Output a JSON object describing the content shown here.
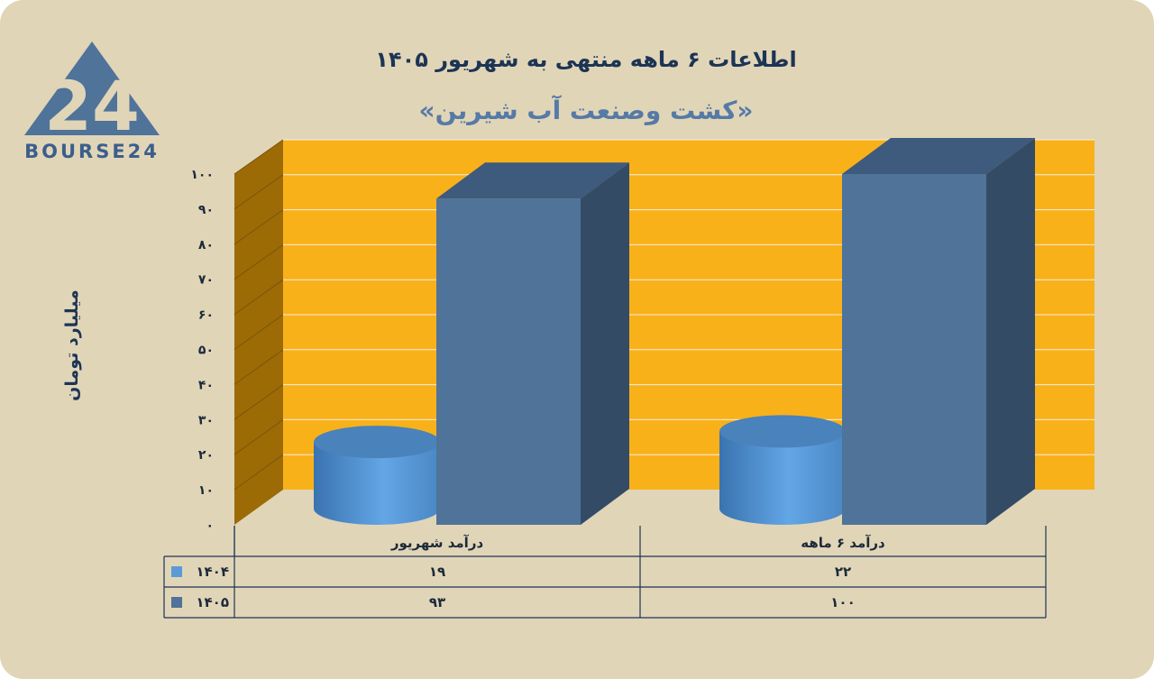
{
  "logo": {
    "text": "BOURSE24",
    "mark": "24"
  },
  "colors": {
    "background": "#e1d5b8",
    "plot_back": "#f9b11a",
    "plot_side": "#9c6b06",
    "series_1404": "#5b9bd5",
    "series_1405": "#4f7399",
    "text_dark": "#1c3554",
    "subtitle": "#567aa6"
  },
  "chart_data": {
    "type": "bar",
    "title": "اطلاعات ۶ ماهه منتهی به شهریور ۱۴۰۵",
    "subtitle": "«کشت وصنعت آب شیرین»",
    "ylabel": "میلیارد تومان",
    "xlabel": "",
    "ylim": [
      0,
      100
    ],
    "yticks": [
      0,
      10,
      20,
      30,
      40,
      50,
      60,
      70,
      80,
      90,
      100
    ],
    "ytick_labels": [
      "۰",
      "۱۰",
      "۲۰",
      "۳۰",
      "۴۰",
      "۵۰",
      "۶۰",
      "۷۰",
      "۸۰",
      "۹۰",
      "۱۰۰"
    ],
    "categories": [
      "درآمد شهریور",
      "درآمد ۶ ماهه"
    ],
    "series": [
      {
        "name": "۱۴۰۴",
        "shape": "cylinder",
        "values": [
          19,
          22
        ],
        "value_labels": [
          "۱۹",
          "۲۲"
        ]
      },
      {
        "name": "۱۴۰۵",
        "shape": "box",
        "values": [
          93,
          100
        ],
        "value_labels": [
          "۹۳",
          "۱۰۰"
        ]
      }
    ],
    "grid": true,
    "legend": "data-table"
  }
}
